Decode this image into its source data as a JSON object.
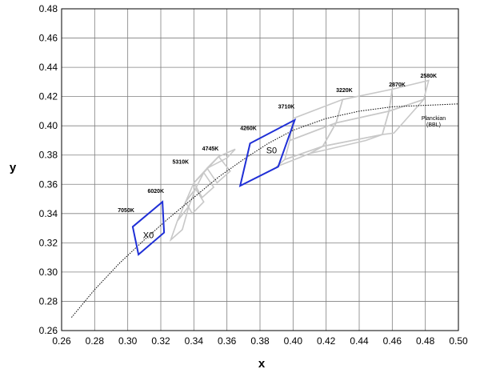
{
  "chart_data": {
    "type": "scatter",
    "xlabel": "x",
    "ylabel": "y",
    "xlim": [
      0.26,
      0.5
    ],
    "ylim": [
      0.26,
      0.48
    ],
    "x_ticks": [
      "0.26",
      "0.28",
      "0.30",
      "0.32",
      "0.34",
      "0.36",
      "0.38",
      "0.40",
      "0.42",
      "0.44",
      "0.46",
      "0.48",
      "0.50"
    ],
    "y_ticks": [
      "0.26",
      "0.28",
      "0.30",
      "0.32",
      "0.34",
      "0.36",
      "0.38",
      "0.40",
      "0.42",
      "0.44",
      "0.46",
      "0.48"
    ],
    "grid": true,
    "colors": {
      "planckian": "#000000",
      "gray_bins": "#c8c8c8",
      "highlight_bins": "#1f2fd6",
      "grid": "#808080"
    },
    "planckian_locus": {
      "label_line1": "Planckian",
      "label_line2": "(BBL)",
      "points": [
        [
          0.266,
          0.269
        ],
        [
          0.28,
          0.288
        ],
        [
          0.295,
          0.306
        ],
        [
          0.31,
          0.322
        ],
        [
          0.325,
          0.337
        ],
        [
          0.34,
          0.351
        ],
        [
          0.355,
          0.365
        ],
        [
          0.37,
          0.377
        ],
        [
          0.385,
          0.388
        ],
        [
          0.4,
          0.397
        ],
        [
          0.42,
          0.405
        ],
        [
          0.44,
          0.41
        ],
        [
          0.46,
          0.413
        ],
        [
          0.48,
          0.414
        ],
        [
          0.5,
          0.415
        ]
      ]
    },
    "cct_labels": [
      {
        "text": "2580K",
        "x": 0.482,
        "y": 0.433
      },
      {
        "text": "2870K",
        "x": 0.463,
        "y": 0.427
      },
      {
        "text": "3220K",
        "x": 0.431,
        "y": 0.423
      },
      {
        "text": "3710K",
        "x": 0.396,
        "y": 0.412
      },
      {
        "text": "4260K",
        "x": 0.373,
        "y": 0.397
      },
      {
        "text": "4745K",
        "x": 0.35,
        "y": 0.383
      },
      {
        "text": "5310K",
        "x": 0.332,
        "y": 0.374
      },
      {
        "text": "6020K",
        "x": 0.317,
        "y": 0.354
      },
      {
        "text": "7050K",
        "x": 0.299,
        "y": 0.341
      }
    ],
    "gray_bins": [
      [
        [
          0.33,
          0.335
        ],
        [
          0.337,
          0.345
        ],
        [
          0.341,
          0.357
        ],
        [
          0.335,
          0.348
        ]
      ],
      [
        [
          0.335,
          0.348
        ],
        [
          0.341,
          0.357
        ],
        [
          0.346,
          0.368
        ],
        [
          0.34,
          0.361
        ]
      ],
      [
        [
          0.34,
          0.361
        ],
        [
          0.346,
          0.368
        ],
        [
          0.355,
          0.379
        ],
        [
          0.348,
          0.371
        ]
      ],
      [
        [
          0.348,
          0.371
        ],
        [
          0.355,
          0.379
        ],
        [
          0.365,
          0.384
        ],
        [
          0.36,
          0.378
        ]
      ],
      [
        [
          0.33,
          0.335
        ],
        [
          0.337,
          0.345
        ],
        [
          0.333,
          0.329
        ],
        [
          0.326,
          0.322
        ]
      ],
      [
        [
          0.335,
          0.348
        ],
        [
          0.341,
          0.357
        ],
        [
          0.346,
          0.348
        ],
        [
          0.339,
          0.34
        ]
      ],
      [
        [
          0.34,
          0.361
        ],
        [
          0.346,
          0.368
        ],
        [
          0.352,
          0.358
        ],
        [
          0.345,
          0.351
        ]
      ],
      [
        [
          0.348,
          0.371
        ],
        [
          0.355,
          0.379
        ],
        [
          0.362,
          0.369
        ],
        [
          0.354,
          0.361
        ]
      ],
      [
        [
          0.4,
          0.405
        ],
        [
          0.43,
          0.418
        ],
        [
          0.426,
          0.402
        ],
        [
          0.398,
          0.39
        ]
      ],
      [
        [
          0.398,
          0.39
        ],
        [
          0.426,
          0.402
        ],
        [
          0.418,
          0.386
        ],
        [
          0.395,
          0.377
        ]
      ],
      [
        [
          0.43,
          0.418
        ],
        [
          0.46,
          0.425
        ],
        [
          0.458,
          0.41
        ],
        [
          0.426,
          0.402
        ]
      ],
      [
        [
          0.426,
          0.402
        ],
        [
          0.458,
          0.41
        ],
        [
          0.454,
          0.394
        ],
        [
          0.418,
          0.386
        ]
      ],
      [
        [
          0.46,
          0.425
        ],
        [
          0.482,
          0.431
        ],
        [
          0.479,
          0.418
        ],
        [
          0.458,
          0.41
        ]
      ],
      [
        [
          0.458,
          0.41
        ],
        [
          0.479,
          0.418
        ],
        [
          0.461,
          0.395
        ],
        [
          0.454,
          0.394
        ]
      ],
      [
        [
          0.395,
          0.377
        ],
        [
          0.418,
          0.386
        ],
        [
          0.41,
          0.381
        ],
        [
          0.39,
          0.372
        ]
      ],
      [
        [
          0.418,
          0.386
        ],
        [
          0.454,
          0.394
        ],
        [
          0.444,
          0.39
        ],
        [
          0.41,
          0.381
        ]
      ]
    ],
    "highlight_bins": [
      {
        "label": "X0",
        "label_x": 0.3125,
        "label_y": 0.3255,
        "points": [
          [
            0.303,
            0.331
          ],
          [
            0.321,
            0.348
          ],
          [
            0.322,
            0.327
          ],
          [
            0.3065,
            0.312
          ]
        ]
      },
      {
        "label": "S0",
        "label_x": 0.387,
        "label_y": 0.3835,
        "points": [
          [
            0.374,
            0.388
          ],
          [
            0.401,
            0.404
          ],
          [
            0.391,
            0.372
          ],
          [
            0.368,
            0.359
          ]
        ]
      }
    ]
  }
}
